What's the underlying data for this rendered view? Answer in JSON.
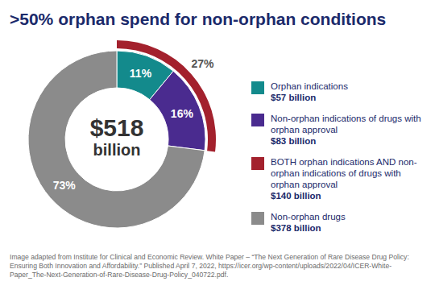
{
  "chart_data": {
    "type": "pie",
    "title": ">50% orphan spend for non-orphan conditions",
    "categories": [
      "Orphan indications",
      "Non-orphan indications of drugs with orphan approval",
      "Non-orphan drugs"
    ],
    "values": [
      11,
      16,
      73
    ],
    "value_labels": [
      "11%",
      "16%",
      "73%"
    ],
    "colors": [
      "#138a8c",
      "#4a2b8f",
      "#8b8b8b"
    ],
    "spend": [
      57,
      83,
      378
    ],
    "spend_labels": [
      "$57 billion",
      "$83 billion",
      "$378 billion"
    ],
    "combined": {
      "name": "BOTH orphan indications AND non-orphan indications of drugs with orphan approval",
      "value": 27,
      "value_label": "27%",
      "spend": 140,
      "spend_label": "$140 billion",
      "color": "#a3212d"
    },
    "total": 518,
    "total_label": [
      "$518",
      "billion"
    ],
    "data_labels": true,
    "caption": "Image adapted from Institute for Clinical and Economic Review. White Paper – “The Next Generation of Rare Disease Drug Policy: Ensuring Both Innovation and Affordability.” Published April 7, 2022, https://icer.org/wp-content/uploads/2022/04/ICER-White-Paper_The-Next-Generation-of-Rare-Disease-Drug-Policy_040722.pdf."
  }
}
